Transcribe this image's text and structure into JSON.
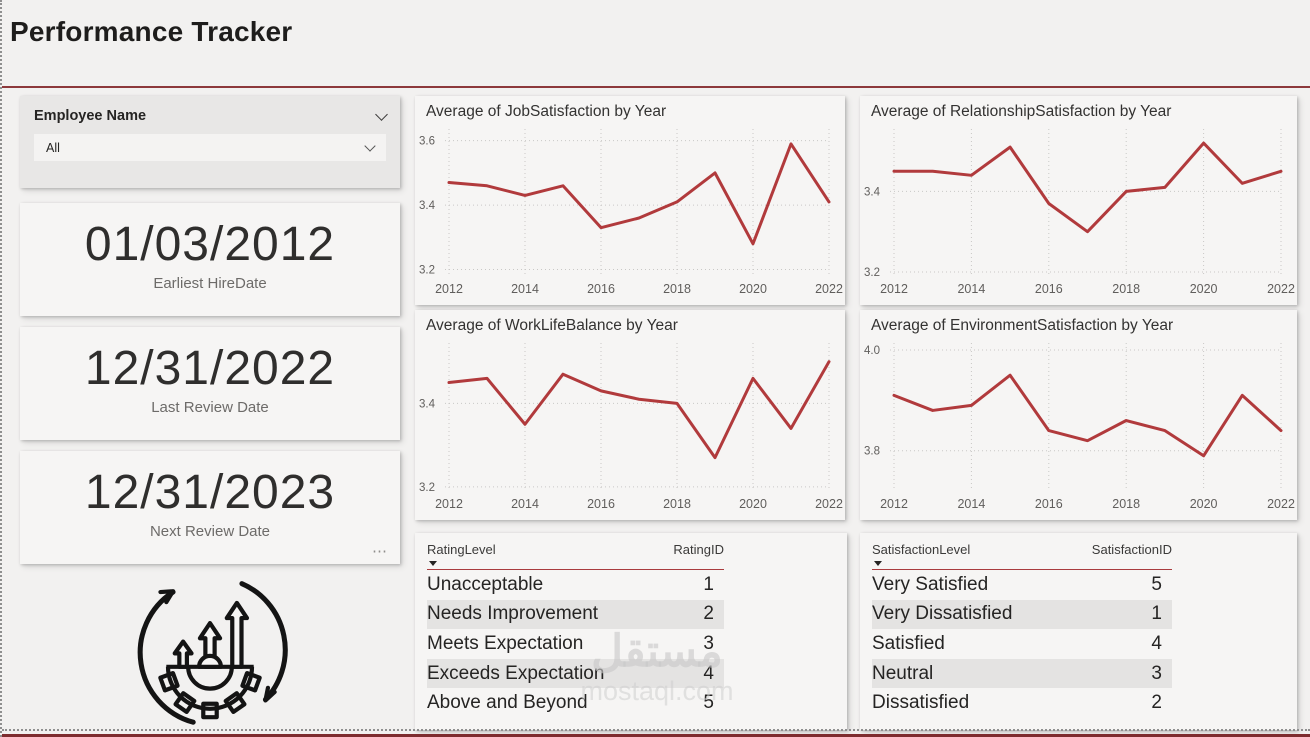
{
  "page": {
    "title": "Performance Tracker"
  },
  "slicer": {
    "label": "Employee Name",
    "value": "All"
  },
  "cards": [
    {
      "value": "01/03/2012",
      "label": "Earliest HireDate"
    },
    {
      "value": "12/31/2022",
      "label": "Last Review Date"
    },
    {
      "value": "12/31/2023",
      "label": "Next Review Date"
    }
  ],
  "icons": {
    "slicer_chevron": "chevron-down",
    "dropdown_chevron": "chevron-down",
    "more_options": "⋯",
    "growth_cycle": "gear-with-growth-arrows"
  },
  "colors": {
    "accent_line": "#B13A3C",
    "title_rule": "#8D393C",
    "table_header_rule": "#A93B3E",
    "shaded_row": "#E4E3E2",
    "page_bg": "#F2F1F0",
    "card_bg": "#F6F5F4"
  },
  "chart_data": [
    {
      "type": "line",
      "title": "Average of JobSatisfaction by Year",
      "x": [
        2012,
        2013,
        2014,
        2015,
        2016,
        2017,
        2018,
        2019,
        2020,
        2021,
        2022
      ],
      "values": [
        3.47,
        3.46,
        3.43,
        3.46,
        3.33,
        3.36,
        3.41,
        3.5,
        3.28,
        3.59,
        3.41
      ],
      "xticks": [
        2012,
        2014,
        2016,
        2018,
        2020,
        2022
      ],
      "yticks": [
        3.2,
        3.4,
        3.6
      ],
      "ylim": [
        3.18,
        3.63
      ],
      "grid": true,
      "legend": "none"
    },
    {
      "type": "line",
      "title": "Average of RelationshipSatisfaction by Year",
      "x": [
        2012,
        2013,
        2014,
        2015,
        2016,
        2017,
        2018,
        2019,
        2020,
        2021,
        2022
      ],
      "values": [
        3.45,
        3.45,
        3.44,
        3.51,
        3.37,
        3.3,
        3.4,
        3.41,
        3.52,
        3.42,
        3.45
      ],
      "xticks": [
        2012,
        2014,
        2016,
        2018,
        2020,
        2022
      ],
      "yticks": [
        3.2,
        3.4
      ],
      "ylim": [
        3.19,
        3.55
      ],
      "grid": true,
      "legend": "none"
    },
    {
      "type": "line",
      "title": "Average of WorkLifeBalance by Year",
      "x": [
        2012,
        2013,
        2014,
        2015,
        2016,
        2017,
        2018,
        2019,
        2020,
        2021,
        2022
      ],
      "values": [
        3.45,
        3.46,
        3.35,
        3.47,
        3.43,
        3.41,
        3.4,
        3.27,
        3.46,
        3.34,
        3.5
      ],
      "xticks": [
        2012,
        2014,
        2016,
        2018,
        2020,
        2022
      ],
      "yticks": [
        3.2,
        3.4
      ],
      "ylim": [
        3.19,
        3.54
      ],
      "grid": true,
      "legend": "none"
    },
    {
      "type": "line",
      "title": "Average of EnvironmentSatisfaction by Year",
      "x": [
        2012,
        2013,
        2014,
        2015,
        2016,
        2017,
        2018,
        2019,
        2020,
        2021,
        2022
      ],
      "values": [
        3.91,
        3.88,
        3.89,
        3.95,
        3.84,
        3.82,
        3.86,
        3.84,
        3.79,
        3.91,
        3.84
      ],
      "xticks": [
        2012,
        2014,
        2016,
        2018,
        2020,
        2022
      ],
      "yticks": [
        3.8,
        4.0
      ],
      "ylim": [
        3.72,
        4.01
      ],
      "grid": true,
      "legend": "none"
    }
  ],
  "tables": [
    {
      "columns": [
        "RatingLevel",
        "RatingID"
      ],
      "sorted_column": "RatingLevel",
      "rows": [
        [
          "Unacceptable",
          "1"
        ],
        [
          "Needs Improvement",
          "2"
        ],
        [
          "Meets Expectation",
          "3"
        ],
        [
          "Exceeds Expectation",
          "4"
        ],
        [
          "Above and Beyond",
          "5"
        ]
      ]
    },
    {
      "columns": [
        "SatisfactionLevel",
        "SatisfactionID"
      ],
      "sorted_column": "SatisfactionLevel",
      "rows": [
        [
          "Very Satisfied",
          "5"
        ],
        [
          "Very Dissatisfied",
          "1"
        ],
        [
          "Satisfied",
          "4"
        ],
        [
          "Neutral",
          "3"
        ],
        [
          "Dissatisfied",
          "2"
        ]
      ]
    }
  ],
  "watermark": {
    "text_arabic": "مستقل",
    "text_domain": "mostaql.com"
  }
}
